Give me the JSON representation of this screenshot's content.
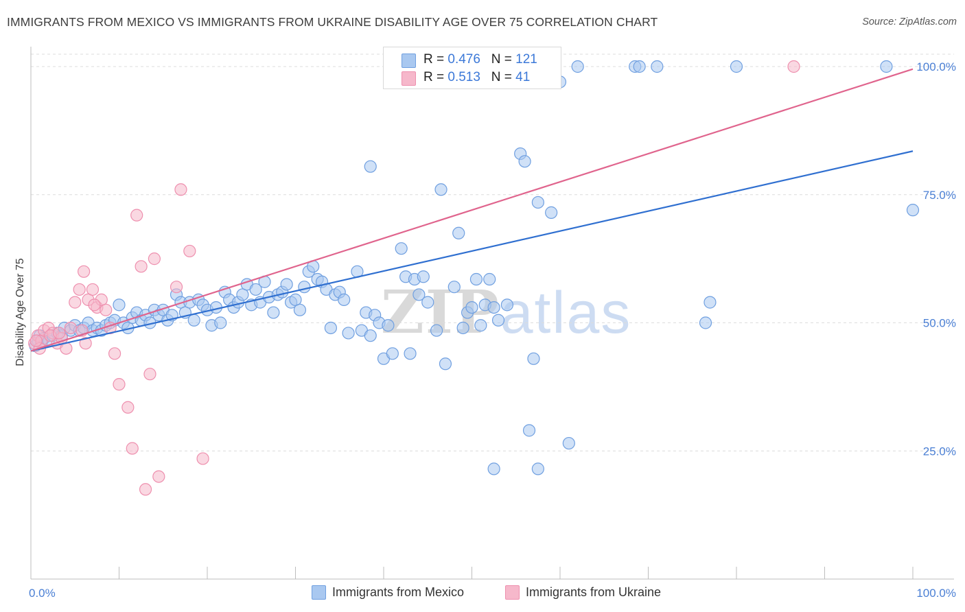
{
  "title": "IMMIGRANTS FROM MEXICO VS IMMIGRANTS FROM UKRAINE DISABILITY AGE OVER 75 CORRELATION CHART",
  "source": "Source: ZipAtlas.com",
  "watermark": {
    "zip": "ZIP",
    "atlas": "atlas"
  },
  "colors": {
    "mexico_fill": "#a9c8f0",
    "mexico_stroke": "#6f9fe0",
    "mexico_line": "#2f6fd0",
    "ukraine_fill": "#f6b8cb",
    "ukraine_stroke": "#ee8fae",
    "ukraine_line": "#e0648d",
    "tick_text": "#4a7fd4",
    "grid": "#dcdcdc"
  },
  "legend": {
    "rows": [
      {
        "r_label": "R =",
        "r_value": "0.476",
        "n_label": "N =",
        "n_value": "121"
      },
      {
        "r_label": "R =",
        "r_value": "0.513",
        "n_label": "N =",
        "n_value": "41"
      }
    ]
  },
  "bottom_legend": {
    "mexico": "Immigrants from Mexico",
    "ukraine": "Immigrants from Ukraine"
  },
  "chart_data": {
    "type": "scatter",
    "title": "IMMIGRANTS FROM MEXICO VS IMMIGRANTS FROM UKRAINE DISABILITY AGE OVER 75 CORRELATION CHART",
    "xlabel": "",
    "ylabel": "Disability Age Over 75",
    "xlim": [
      0,
      100
    ],
    "ylim": [
      0,
      103
    ],
    "x_tick_labels": [
      "0.0%",
      "100.0%"
    ],
    "y_ticks": [
      25,
      50,
      75,
      100
    ],
    "y_tick_labels": [
      "25.0%",
      "50.0%",
      "75.0%",
      "100.0%"
    ],
    "series": [
      {
        "name": "Immigrants from Mexico",
        "r": 0.476,
        "n": 121,
        "trend": {
          "x": [
            0,
            100
          ],
          "y": [
            44.5,
            83.5
          ]
        },
        "points": [
          [
            0.5,
            45.5
          ],
          [
            0.8,
            46.5
          ],
          [
            1.0,
            47.5
          ],
          [
            1.2,
            46.0
          ],
          [
            1.5,
            47.0
          ],
          [
            2.0,
            46.5
          ],
          [
            2.5,
            47.5
          ],
          [
            3.0,
            48.0
          ],
          [
            3.5,
            47.5
          ],
          [
            3.8,
            49.0
          ],
          [
            4.5,
            48.5
          ],
          [
            5.0,
            49.5
          ],
          [
            5.5,
            48.5
          ],
          [
            6.0,
            49.0
          ],
          [
            6.5,
            50.0
          ],
          [
            7.0,
            48.5
          ],
          [
            7.5,
            49.0
          ],
          [
            8.0,
            48.5
          ],
          [
            8.5,
            49.5
          ],
          [
            9.0,
            50.0
          ],
          [
            9.5,
            50.5
          ],
          [
            10.0,
            53.5
          ],
          [
            10.5,
            50.0
          ],
          [
            11.0,
            49.0
          ],
          [
            11.5,
            51.0
          ],
          [
            12.0,
            52.0
          ],
          [
            12.5,
            50.5
          ],
          [
            13.0,
            51.5
          ],
          [
            13.5,
            50.0
          ],
          [
            14.0,
            52.5
          ],
          [
            14.5,
            51.5
          ],
          [
            15.0,
            52.5
          ],
          [
            15.5,
            50.5
          ],
          [
            16.0,
            51.5
          ],
          [
            16.5,
            55.5
          ],
          [
            17.0,
            54.0
          ],
          [
            17.5,
            52.0
          ],
          [
            18.0,
            54.0
          ],
          [
            18.5,
            50.5
          ],
          [
            19.0,
            54.5
          ],
          [
            19.5,
            53.5
          ],
          [
            20.0,
            52.5
          ],
          [
            20.5,
            49.5
          ],
          [
            21.0,
            53.0
          ],
          [
            21.5,
            50.0
          ],
          [
            22.0,
            56.0
          ],
          [
            22.5,
            54.5
          ],
          [
            23.0,
            53.0
          ],
          [
            23.5,
            54.0
          ],
          [
            24.0,
            55.5
          ],
          [
            24.5,
            57.5
          ],
          [
            25.0,
            53.5
          ],
          [
            25.5,
            56.5
          ],
          [
            26.0,
            54.0
          ],
          [
            26.5,
            58.0
          ],
          [
            27.0,
            55.0
          ],
          [
            27.5,
            52.0
          ],
          [
            28.0,
            55.5
          ],
          [
            28.5,
            56.0
          ],
          [
            29.0,
            57.5
          ],
          [
            29.5,
            54.0
          ],
          [
            30.0,
            54.5
          ],
          [
            30.5,
            52.5
          ],
          [
            31.0,
            57.0
          ],
          [
            31.5,
            60.0
          ],
          [
            32.0,
            61.0
          ],
          [
            32.5,
            58.5
          ],
          [
            33.0,
            58.0
          ],
          [
            33.5,
            56.5
          ],
          [
            34.0,
            49.0
          ],
          [
            34.5,
            55.5
          ],
          [
            35.0,
            56.0
          ],
          [
            35.5,
            54.5
          ],
          [
            36.0,
            48.0
          ],
          [
            37.0,
            60.0
          ],
          [
            37.5,
            48.5
          ],
          [
            38.0,
            52.0
          ],
          [
            38.5,
            47.5
          ],
          [
            39.0,
            51.5
          ],
          [
            39.5,
            50.0
          ],
          [
            40.0,
            43.0
          ],
          [
            40.5,
            49.5
          ],
          [
            41.0,
            44.0
          ],
          [
            42.0,
            64.5
          ],
          [
            42.5,
            59.0
          ],
          [
            43.0,
            44.0
          ],
          [
            43.5,
            58.5
          ],
          [
            44.0,
            55.5
          ],
          [
            44.5,
            59.0
          ],
          [
            45.0,
            54.0
          ],
          [
            46.0,
            48.5
          ],
          [
            46.5,
            76.0
          ],
          [
            47.0,
            42.0
          ],
          [
            48.5,
            67.5
          ],
          [
            48.0,
            57.0
          ],
          [
            49.0,
            49.0
          ],
          [
            49.5,
            52.0
          ],
          [
            50.0,
            53.0
          ],
          [
            50.5,
            58.5
          ],
          [
            51.0,
            49.5
          ],
          [
            51.5,
            53.5
          ],
          [
            52.0,
            58.5
          ],
          [
            52.5,
            53.0
          ],
          [
            53.0,
            50.5
          ],
          [
            54.0,
            53.5
          ],
          [
            55.5,
            83.0
          ],
          [
            56.0,
            81.5
          ],
          [
            57.0,
            43.0
          ],
          [
            57.5,
            73.5
          ],
          [
            59.0,
            71.5
          ],
          [
            60.0,
            97.0
          ],
          [
            62.0,
            100.0
          ],
          [
            80.0,
            100.0
          ],
          [
            97.0,
            100.0
          ],
          [
            100.0,
            72.0
          ],
          [
            61.0,
            26.5
          ],
          [
            56.5,
            29.0
          ],
          [
            52.5,
            21.5
          ],
          [
            57.5,
            21.5
          ],
          [
            38.5,
            80.5
          ],
          [
            76.5,
            50.0
          ],
          [
            68.5,
            100.0
          ],
          [
            69.0,
            100.0
          ],
          [
            71.0,
            100.0
          ],
          [
            77.0,
            54.0
          ]
        ]
      },
      {
        "name": "Immigrants from Ukraine",
        "r": 0.513,
        "n": 41,
        "trend": {
          "x": [
            0,
            100
          ],
          "y": [
            44.5,
            99.5
          ]
        },
        "points": [
          [
            0.4,
            46.0
          ],
          [
            0.8,
            47.5
          ],
          [
            1.2,
            46.5
          ],
          [
            1.5,
            48.5
          ],
          [
            2.0,
            49.0
          ],
          [
            2.5,
            48.0
          ],
          [
            3.0,
            46.0
          ],
          [
            3.5,
            47.0
          ],
          [
            4.0,
            45.0
          ],
          [
            4.5,
            49.0
          ],
          [
            5.0,
            54.0
          ],
          [
            5.5,
            56.5
          ],
          [
            6.0,
            60.0
          ],
          [
            6.5,
            54.5
          ],
          [
            7.0,
            56.5
          ],
          [
            7.5,
            53.0
          ],
          [
            8.0,
            54.5
          ],
          [
            8.5,
            52.5
          ],
          [
            9.0,
            49.0
          ],
          [
            9.5,
            44.0
          ],
          [
            10.0,
            38.0
          ],
          [
            11.0,
            33.5
          ],
          [
            11.5,
            25.5
          ],
          [
            12.0,
            71.0
          ],
          [
            12.5,
            61.0
          ],
          [
            13.0,
            17.5
          ],
          [
            13.5,
            40.0
          ],
          [
            14.0,
            62.5
          ],
          [
            14.5,
            20.0
          ],
          [
            16.5,
            57.0
          ],
          [
            17.0,
            76.0
          ],
          [
            18.0,
            64.0
          ],
          [
            19.5,
            23.5
          ],
          [
            86.5,
            100.0
          ],
          [
            2.2,
            47.5
          ],
          [
            3.2,
            48.0
          ],
          [
            1.0,
            45.0
          ],
          [
            6.2,
            46.0
          ],
          [
            0.6,
            46.5
          ],
          [
            7.2,
            53.5
          ],
          [
            5.8,
            48.5
          ]
        ]
      }
    ]
  }
}
